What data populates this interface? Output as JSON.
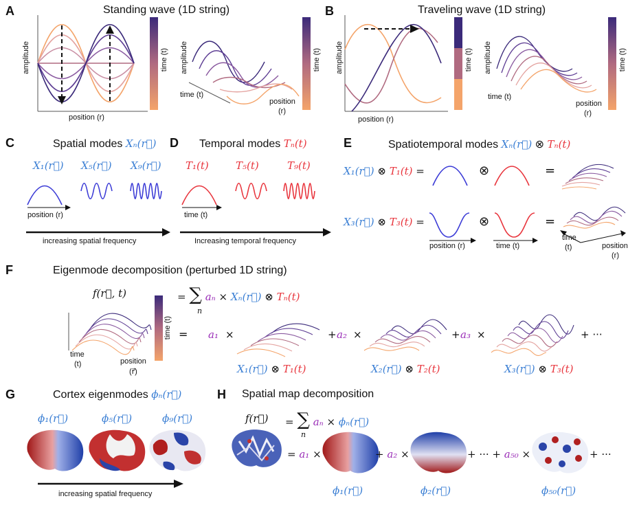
{
  "panels": {
    "A": {
      "letter": "A",
      "title": "Standing wave (1D string)",
      "ylabel": "amplitude",
      "xlabel": "position (r)",
      "cbar_label": "time (t)",
      "surf_xlabel": "time (t)",
      "surf_ylabel": "amplitude",
      "surf_pos": "position",
      "surf_pos_r": "(r)"
    },
    "B": {
      "letter": "B",
      "title": "Traveling wave  (1D string)",
      "ylabel": "amplitude",
      "xlabel": "position (r)",
      "cbar_label": "time (t)",
      "surf_xlabel": "time (t)",
      "surf_ylabel": "amplitude",
      "surf_pos": "position",
      "surf_pos_r": "(r)"
    },
    "C": {
      "letter": "C",
      "title": "Spatial modes",
      "title_math": "Xₙ(r⃗)",
      "m1": "X₁(r⃗)",
      "m2": "X₅(r⃗)",
      "m3": "X₉(r⃗)",
      "xlabel": "position (r)",
      "arrow": "increasing spatial frequency"
    },
    "D": {
      "letter": "D",
      "title": "Temporal modes",
      "title_math": "Tₙ(t)",
      "m1": "T₁(t)",
      "m2": "T₅(t)",
      "m3": "T₉(t)",
      "xlabel": "time (t)",
      "arrow": "Increasing temporal frequency"
    },
    "E": {
      "letter": "E",
      "title": "Spatiotemporal modes",
      "title_x": "Xₙ(r⃗)",
      "title_t": "Tₙ(t)",
      "otimes": "⊗",
      "eq": "=",
      "r1x": "X₁(r⃗)",
      "r1t": "T₁(t)",
      "r2x": "X₃(r⃗)",
      "r2t": "T₃(t)",
      "xlabel_pos": "position (r)",
      "xlabel_time": "time (t)",
      "surf_time": "time",
      "surf_t": "(t)",
      "surf_pos": "position",
      "surf_r": "(r)"
    },
    "F": {
      "letter": "F",
      "title": "Eigenmode decomposition  (perturbed 1D string)",
      "f": "f(r⃗, t)",
      "sum": "∑",
      "n": "n",
      "an": "aₙ",
      "times": "×",
      "xn": "Xₙ(r⃗)",
      "otimes": "⊗",
      "tn": "Tₙ(t)",
      "eq": "=",
      "cbar_label": "time (t)",
      "time": "time",
      "t": "(t)",
      "pos": "position",
      "r": "(r⃗)",
      "a1": "a₁",
      "a2": "a₂",
      "a3": "a₃",
      "plus": "+",
      "dots": "+ ···",
      "x1": "X₁(r⃗)",
      "t1": "T₁(t)",
      "x2": "X₂(r⃗)",
      "t2": "T₂(t)",
      "x3": "X₃(r⃗)",
      "t3": "T₃(t)"
    },
    "G": {
      "letter": "G",
      "title": "Cortex eigenmodes",
      "title_math": "ϕₙ(r⃗)",
      "m1": "ϕ₁(r⃗)",
      "m2": "ϕ₅(r⃗)",
      "m3": "ϕ₉(r⃗)",
      "arrow": "increasing spatial frequency"
    },
    "H": {
      "letter": "H",
      "title": "Spatial map decomposition",
      "f": "f(r⃗)",
      "sum": "∑",
      "n": "n",
      "an": "aₙ",
      "times": "×",
      "phin": "ϕₙ(r⃗)",
      "eq": "=",
      "a1": "a₁",
      "a2": "a₂",
      "a50": "a₅₀",
      "plus": "+",
      "dots": "+ ··· +",
      "tail": "+ ···",
      "p1": "ϕ₁(r⃗)",
      "p2": "ϕ₂(r⃗)",
      "p50": "ϕ₅₀(r⃗)"
    }
  },
  "colors": {
    "blue": "#3b7fd4",
    "red": "#e8343c",
    "purple": "#9b30b8",
    "wave_dark": "#3b2a7a",
    "wave_light": "#f4a46a"
  }
}
